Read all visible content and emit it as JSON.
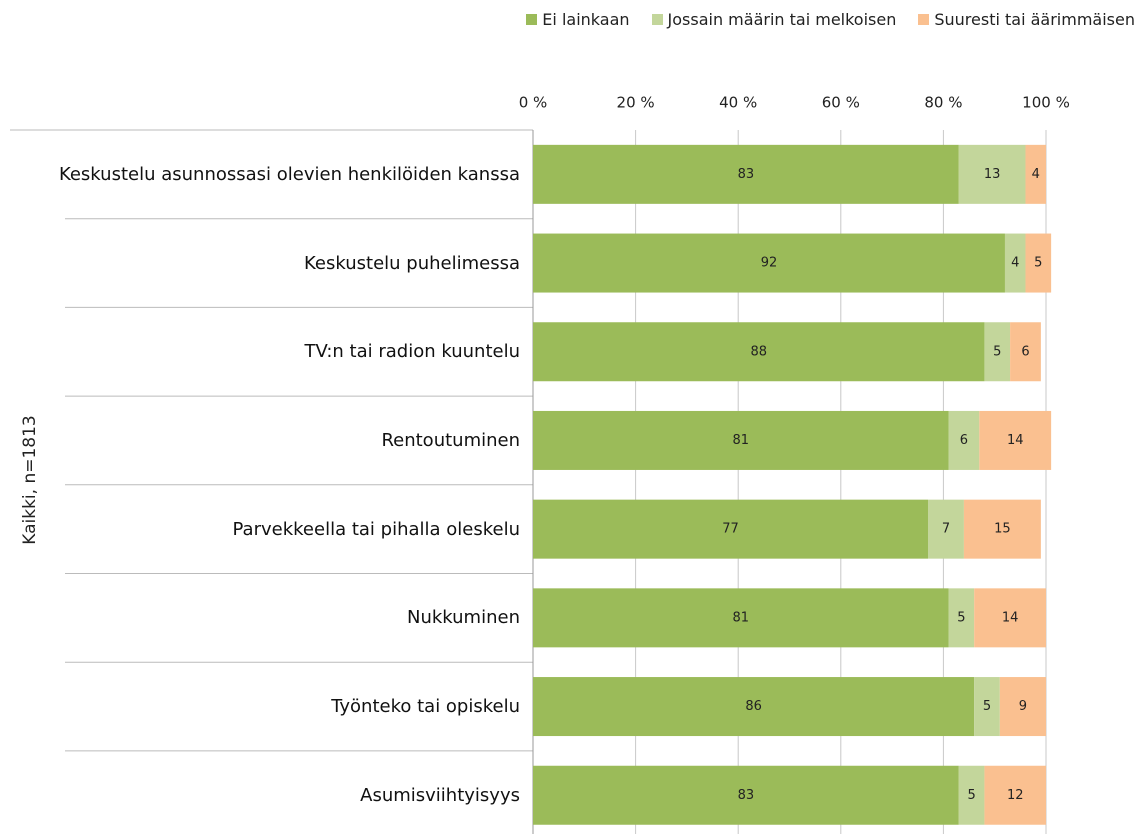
{
  "chart_data": {
    "type": "stacked-barh",
    "ylabel": "Kaikki, n=1813",
    "categories": [
      "Keskustelu asunnossasi olevien henkilöiden kanssa",
      "Keskustelu puhelimessa",
      "TV:n tai radion kuuntelu",
      "Rentoutuminen",
      "Parvekkeella tai pihalla oleskelu",
      "Nukkuminen",
      "Työnteko tai opiskelu",
      "Asumisviihtyisyys"
    ],
    "series": [
      {
        "name": "Ei lainkaan",
        "color": "#9bbb59",
        "values": [
          83,
          92,
          88,
          81,
          77,
          81,
          86,
          83
        ]
      },
      {
        "name": "Jossain määrin tai melkoisen",
        "color": "#c3d69b",
        "values": [
          13,
          4,
          5,
          6,
          7,
          5,
          5,
          5
        ]
      },
      {
        "name": "Suuresti tai äärimmäisen",
        "color": "#fac090",
        "values": [
          4,
          5,
          6,
          14,
          15,
          14,
          9,
          12
        ]
      }
    ],
    "xlim": [
      0,
      100
    ],
    "xticks": [
      {
        "value": 0,
        "label": "0 %"
      },
      {
        "value": 20,
        "label": "20 %"
      },
      {
        "value": 40,
        "label": "40 %"
      },
      {
        "value": 60,
        "label": "60 %"
      },
      {
        "value": 80,
        "label": "80 %"
      },
      {
        "value": 100,
        "label": "100 %"
      }
    ],
    "grid": true
  }
}
